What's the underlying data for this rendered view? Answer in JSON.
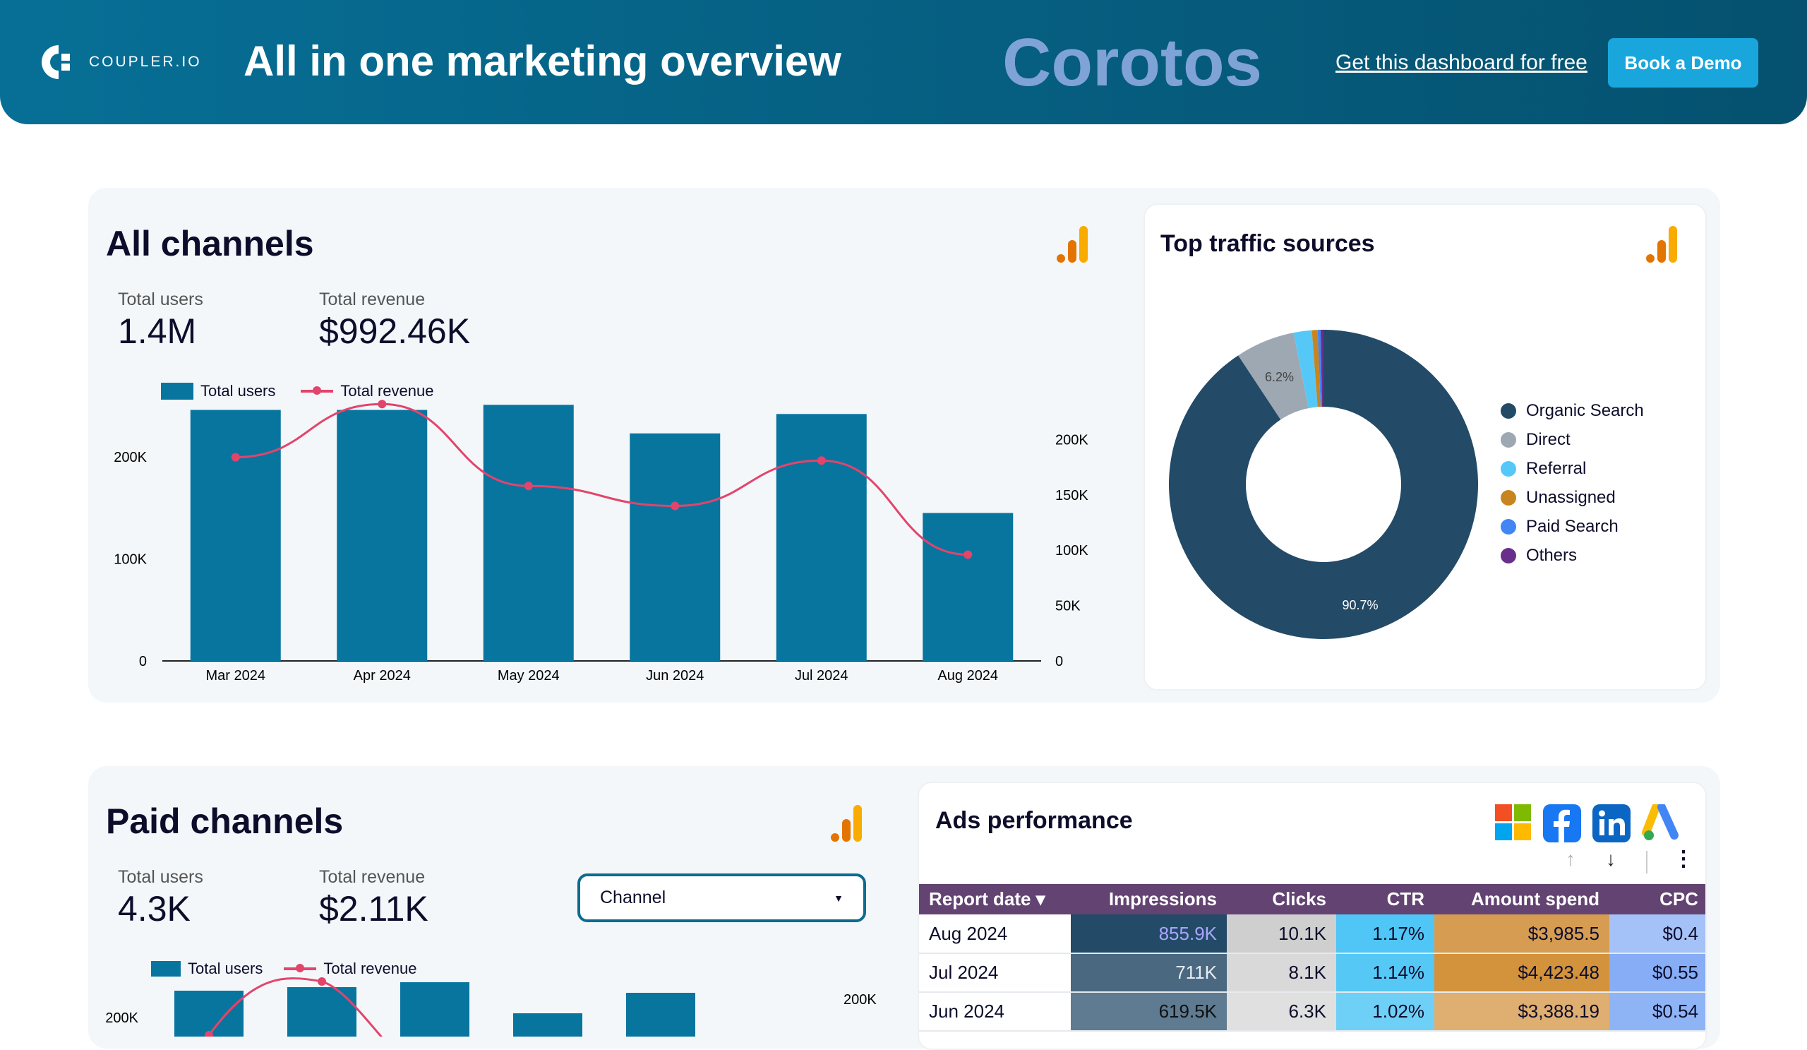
{
  "header": {
    "logo": "COUPLER.IO",
    "title": "All in one marketing overview",
    "link": "Get this dashboard for free",
    "button": "Book a Demo"
  },
  "all_channels": {
    "title": "All channels",
    "icon": "google-analytics-icon",
    "stats": [
      {
        "label": "Total users",
        "value": "1.4M"
      },
      {
        "label": "Total revenue",
        "value": "$992.46K"
      }
    ]
  },
  "paid_channels": {
    "title": "Paid channels",
    "icon": "google-analytics-icon",
    "stats": [
      {
        "label": "Total users",
        "value": "4.3K"
      },
      {
        "label": "Total revenue",
        "value": "$2.11K"
      }
    ],
    "dropdown": "Channel"
  },
  "colors": {
    "bar": "#08759f",
    "line": "#e3446b",
    "header": "#06668c",
    "table_header": "#634372"
  },
  "watermark": "Corotos",
  "chart_data": [
    {
      "type": "bar+line",
      "categories": [
        "Mar 2024",
        "Apr 2024",
        "May 2024",
        "Jun 2024",
        "Jul 2024",
        "Aug 2024"
      ],
      "series": [
        {
          "name": "Total users",
          "type": "bar",
          "axis": "left",
          "values": [
            246000,
            246000,
            251000,
            223000,
            242000,
            145000
          ]
        },
        {
          "name": "Total revenue",
          "type": "line",
          "axis": "right",
          "values": [
            184000,
            232000,
            158000,
            140000,
            181000,
            96000
          ]
        }
      ],
      "left_ticks": [
        "0",
        "100K",
        "200K"
      ],
      "right_ticks": [
        "0",
        "50K",
        "100K",
        "150K",
        "200K"
      ],
      "ylim_left": [
        0,
        270000
      ],
      "ylim_right": [
        0,
        240000
      ],
      "legend": "top-left",
      "grid": false
    },
    {
      "type": "donut",
      "title": "Top traffic sources",
      "legend": "right",
      "slices": [
        {
          "name": "Organic Search",
          "value": 90.7,
          "label": "90.7%",
          "color": "#234a67"
        },
        {
          "name": "Direct",
          "value": 6.2,
          "label": "6.2%",
          "color": "#9ea8b2"
        },
        {
          "name": "Referral",
          "value": 1.9,
          "color": "#56c8f7"
        },
        {
          "name": "Unassigned",
          "value": 0.6,
          "color": "#c8841e"
        },
        {
          "name": "Paid Search",
          "value": 0.3,
          "color": "#4285f4"
        },
        {
          "name": "Others",
          "value": 0.3,
          "color": "#6a2e8c"
        }
      ]
    },
    {
      "type": "bar+line",
      "series_names": [
        "Total users",
        "Total revenue"
      ],
      "categories_visible": 5,
      "series": [
        {
          "name": "Total users",
          "type": "bar",
          "values": [
            212000,
            215000,
            220000,
            190000,
            210000
          ]
        },
        {
          "name": "Total revenue",
          "type": "line",
          "values": [
            170000,
            220000,
            120000
          ]
        }
      ],
      "left_ticks": [
        "200K"
      ],
      "right_ticks": [
        "200K"
      ]
    }
  ],
  "ads": {
    "title": "Ads performance",
    "icons": [
      "microsoft-ads-icon",
      "facebook-icon",
      "linkedin-icon",
      "google-ads-icon"
    ],
    "columns": [
      "Report date ▾",
      "Impressions",
      "Clicks",
      "CTR",
      "Amount spend",
      "CPC"
    ],
    "rows": [
      [
        "Aug 2024",
        "855.9K",
        "10.1K",
        "1.17%",
        "$3,985.5",
        "$0.4"
      ],
      [
        "Jul 2024",
        "711K",
        "8.1K",
        "1.14%",
        "$4,423.48",
        "$0.55"
      ],
      [
        "Jun 2024",
        "619.5K",
        "6.3K",
        "1.02%",
        "$3,388.19",
        "$0.54"
      ]
    ],
    "cell_colors": [
      [
        "#fff",
        "#234a67",
        "#cfcfcf",
        "#4fc6f5",
        "#d69d52",
        "#a4c2f7"
      ],
      [
        "#fff",
        "#4a6880",
        "#d9d9d9",
        "#55c8f6",
        "#d3923c",
        "#86adf5"
      ],
      [
        "#fff",
        "#5e7b91",
        "#e0e0e0",
        "#6fd0f7",
        "#dfae71",
        "#8fb4f6"
      ]
    ]
  }
}
